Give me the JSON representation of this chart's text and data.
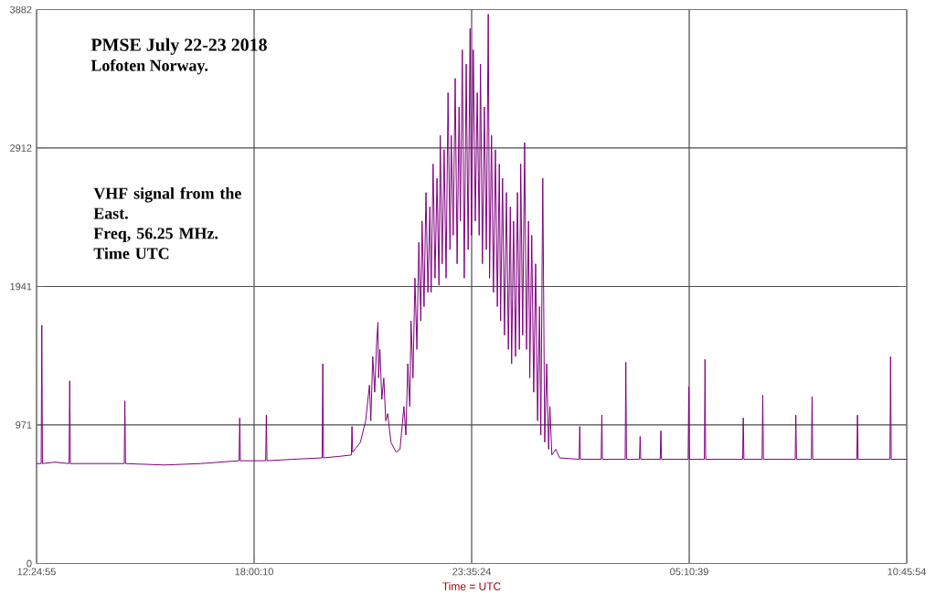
{
  "chart_data": {
    "type": "line",
    "title": "PMSE July 22-23 2018",
    "subtitle": "Lofoten Norway.",
    "xlabel": "Time = UTC",
    "annotations": [
      "VHF signal from the East.",
      "Freq, 56.25 MHz.",
      "Time UTC"
    ],
    "xlim": [
      "2018-07-22T12:24:55",
      "2018-07-23T10:45:54"
    ],
    "ylim": [
      0,
      3882
    ],
    "xticks": [
      {
        "value": "2018-07-22T12:24:55",
        "label": "12:24:55"
      },
      {
        "value": "2018-07-22T18:00:10",
        "label": "18:00:10"
      },
      {
        "value": "2018-07-22T23:35:24",
        "label": "23:35:24"
      },
      {
        "value": "2018-07-23T05:10:39",
        "label": "05:10:39"
      },
      {
        "value": "2018-07-23T10:45:54",
        "label": "10:45:54"
      }
    ],
    "yticks": [
      0,
      971,
      1941,
      2912,
      3882
    ],
    "grid": true,
    "series": [
      {
        "color": "#800080",
        "x": [
          "2018-07-22T12:24:55",
          "2018-07-22T12:32",
          "2018-07-22T12:33",
          "2018-07-22T12:34",
          "2018-07-22T12:53",
          "2018-07-22T13:15",
          "2018-07-22T13:16",
          "2018-07-22T13:17",
          "2018-07-22T13:49",
          "2018-07-22T14:40",
          "2018-07-22T14:41",
          "2018-07-22T14:42",
          "2018-07-22T15:42",
          "2018-07-22T16:38",
          "2018-07-22T17:37",
          "2018-07-22T17:38",
          "2018-07-22T17:39",
          "2018-07-22T18:18",
          "2018-07-22T18:19",
          "2018-07-22T18:20",
          "2018-07-22T18:59",
          "2018-07-22T19:45",
          "2018-07-22T19:46",
          "2018-07-22T19:47",
          "2018-07-22T20:10",
          "2018-07-22T20:30",
          "2018-07-22T20:31",
          "2018-07-22T20:32",
          "2018-07-22T20:44",
          "2018-07-22T20:52",
          "2018-07-22T20:58",
          "2018-07-22T21:00",
          "2018-07-22T21:03",
          "2018-07-22T21:06",
          "2018-07-22T21:09",
          "2018-07-22T21:11",
          "2018-07-22T21:12",
          "2018-07-22T21:14",
          "2018-07-22T21:17",
          "2018-07-22T21:20",
          "2018-07-22T21:23",
          "2018-07-22T21:26",
          "2018-07-22T21:31",
          "2018-07-22T21:39",
          "2018-07-22T21:45",
          "2018-07-22T21:51",
          "2018-07-22T21:54",
          "2018-07-22T21:57",
          "2018-07-22T22:00",
          "2018-07-22T22:02",
          "2018-07-22T22:05",
          "2018-07-22T22:08",
          "2018-07-22T22:11",
          "2018-07-22T22:14",
          "2018-07-22T22:17",
          "2018-07-22T22:19",
          "2018-07-22T22:22",
          "2018-07-22T22:25",
          "2018-07-22T22:28",
          "2018-07-22T22:31",
          "2018-07-22T22:33",
          "2018-07-22T22:36",
          "2018-07-22T22:39",
          "2018-07-22T22:42",
          "2018-07-22T22:45",
          "2018-07-22T22:47",
          "2018-07-22T22:50",
          "2018-07-22T22:53",
          "2018-07-22T22:56",
          "2018-07-22T22:59",
          "2018-07-22T23:02",
          "2018-07-22T23:04",
          "2018-07-22T23:07",
          "2018-07-22T23:10",
          "2018-07-22T23:13",
          "2018-07-22T23:16",
          "2018-07-22T23:18",
          "2018-07-22T23:21",
          "2018-07-22T23:24",
          "2018-07-22T23:27",
          "2018-07-22T23:30",
          "2018-07-22T23:33",
          "2018-07-22T23:35",
          "2018-07-22T23:38",
          "2018-07-22T23:41",
          "2018-07-22T23:44",
          "2018-07-22T23:47",
          "2018-07-22T23:49",
          "2018-07-22T23:52",
          "2018-07-22T23:55",
          "2018-07-22T23:58",
          "2018-07-23T00:01",
          "2018-07-23T00:03",
          "2018-07-23T00:06",
          "2018-07-23T00:09",
          "2018-07-23T00:12",
          "2018-07-23T00:15",
          "2018-07-23T00:18",
          "2018-07-23T00:20",
          "2018-07-23T00:23",
          "2018-07-23T00:26",
          "2018-07-23T00:29",
          "2018-07-23T00:32",
          "2018-07-23T00:35",
          "2018-07-23T00:37",
          "2018-07-23T00:40",
          "2018-07-23T00:43",
          "2018-07-23T00:46",
          "2018-07-23T00:49",
          "2018-07-23T00:51",
          "2018-07-23T00:54",
          "2018-07-23T00:57",
          "2018-07-23T01:00",
          "2018-07-23T01:03",
          "2018-07-23T01:05",
          "2018-07-23T01:08",
          "2018-07-23T01:11",
          "2018-07-23T01:14",
          "2018-07-23T01:17",
          "2018-07-23T01:20",
          "2018-07-23T01:22",
          "2018-07-23T01:25",
          "2018-07-23T01:28",
          "2018-07-23T01:31",
          "2018-07-23T01:34",
          "2018-07-23T01:36",
          "2018-07-23T01:39",
          "2018-07-23T01:45",
          "2018-07-23T01:51",
          "2018-07-23T02:21",
          "2018-07-23T02:22",
          "2018-07-23T02:23",
          "2018-07-23T02:55",
          "2018-07-23T02:56",
          "2018-07-23T02:57",
          "2018-07-23T03:32",
          "2018-07-23T03:33",
          "2018-07-23T03:34",
          "2018-07-23T03:54",
          "2018-07-23T03:55",
          "2018-07-23T03:56",
          "2018-07-23T04:26",
          "2018-07-23T04:27",
          "2018-07-23T04:28",
          "2018-07-23T05:09",
          "2018-07-23T05:10",
          "2018-07-23T05:11",
          "2018-07-23T05:34",
          "2018-07-23T05:35",
          "2018-07-23T05:36",
          "2018-07-23T06:33",
          "2018-07-23T06:34",
          "2018-07-23T06:35",
          "2018-07-23T07:03",
          "2018-07-23T07:04",
          "2018-07-23T07:05",
          "2018-07-23T07:54",
          "2018-07-23T07:55",
          "2018-07-23T07:56",
          "2018-07-23T08:19",
          "2018-07-23T08:20",
          "2018-07-23T08:21",
          "2018-07-23T09:29",
          "2018-07-23T09:30",
          "2018-07-23T09:31",
          "2018-07-23T10:20",
          "2018-07-23T10:21",
          "2018-07-23T10:22",
          "2018-07-23T10:45:54"
        ],
        "values": [
          700,
          700,
          1670,
          700,
          710,
          700,
          1280,
          700,
          700,
          700,
          1140,
          700,
          690,
          700,
          720,
          1020,
          720,
          720,
          1040,
          720,
          730,
          740,
          1400,
          740,
          750,
          760,
          960,
          780,
          850,
          1000,
          1250,
          1000,
          1450,
          1200,
          1550,
          1690,
          1300,
          1500,
          1150,
          1300,
          1000,
          1050,
          850,
          780,
          800,
          1100,
          900,
          1400,
          1100,
          1700,
          1300,
          2000,
          1500,
          2250,
          1700,
          2400,
          1800,
          2600,
          1900,
          2500,
          1900,
          2800,
          2000,
          2700,
          1950,
          3000,
          2100,
          2900,
          2000,
          3300,
          2200,
          3000,
          2300,
          3400,
          2100,
          3200,
          2400,
          3600,
          2000,
          3500,
          2200,
          3750,
          2300,
          3600,
          2400,
          3300,
          2300,
          3500,
          2100,
          3200,
          2200,
          3850,
          2000,
          3000,
          1900,
          2900,
          1800,
          2800,
          1700,
          2700,
          1600,
          2600,
          1500,
          2500,
          1400,
          2400,
          1450,
          2600,
          1500,
          2800,
          1600,
          2950,
          1500,
          2400,
          1300,
          2300,
          1200,
          2100,
          1000,
          1800,
          900,
          2700,
          850,
          1400,
          800,
          1100,
          760,
          800,
          740,
          730,
          960,
          730,
          730,
          1040,
          730,
          730,
          1410,
          730,
          730,
          890,
          730,
          730,
          930,
          730,
          730,
          1240,
          730,
          730,
          1430,
          730,
          730,
          1020,
          730,
          730,
          1180,
          730,
          730,
          1040,
          730,
          730,
          1170,
          730,
          730,
          1040,
          730,
          730,
          1450,
          730,
          730
        ]
      }
    ]
  }
}
